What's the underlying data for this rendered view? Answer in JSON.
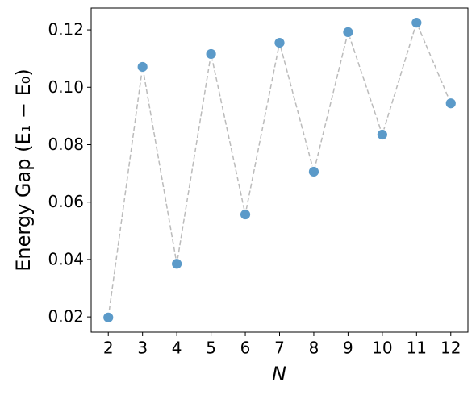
{
  "chart_data": {
    "type": "scatter",
    "xlabel": "N",
    "ylabel": "Energy Gap (E₁ − E₀)",
    "x": [
      2,
      3,
      4,
      5,
      6,
      7,
      8,
      9,
      10,
      11,
      12
    ],
    "series": [
      {
        "color": "#5b9ac9",
        "line_color": "#bbbbbb",
        "line_style": "dashed",
        "values": [
          0.0198,
          0.1071,
          0.0385,
          0.1116,
          0.0557,
          0.1155,
          0.0706,
          0.1192,
          0.0835,
          0.1225,
          0.0944
        ]
      }
    ],
    "xlim": [
      1.5,
      12.5
    ],
    "xticks": [
      2,
      3,
      4,
      5,
      6,
      7,
      8,
      9,
      10,
      11,
      12
    ],
    "ylim": [
      0.0147,
      0.1276
    ],
    "yticks": [
      0.02,
      0.04,
      0.06,
      0.08,
      0.1,
      0.12
    ],
    "grid": false
  }
}
